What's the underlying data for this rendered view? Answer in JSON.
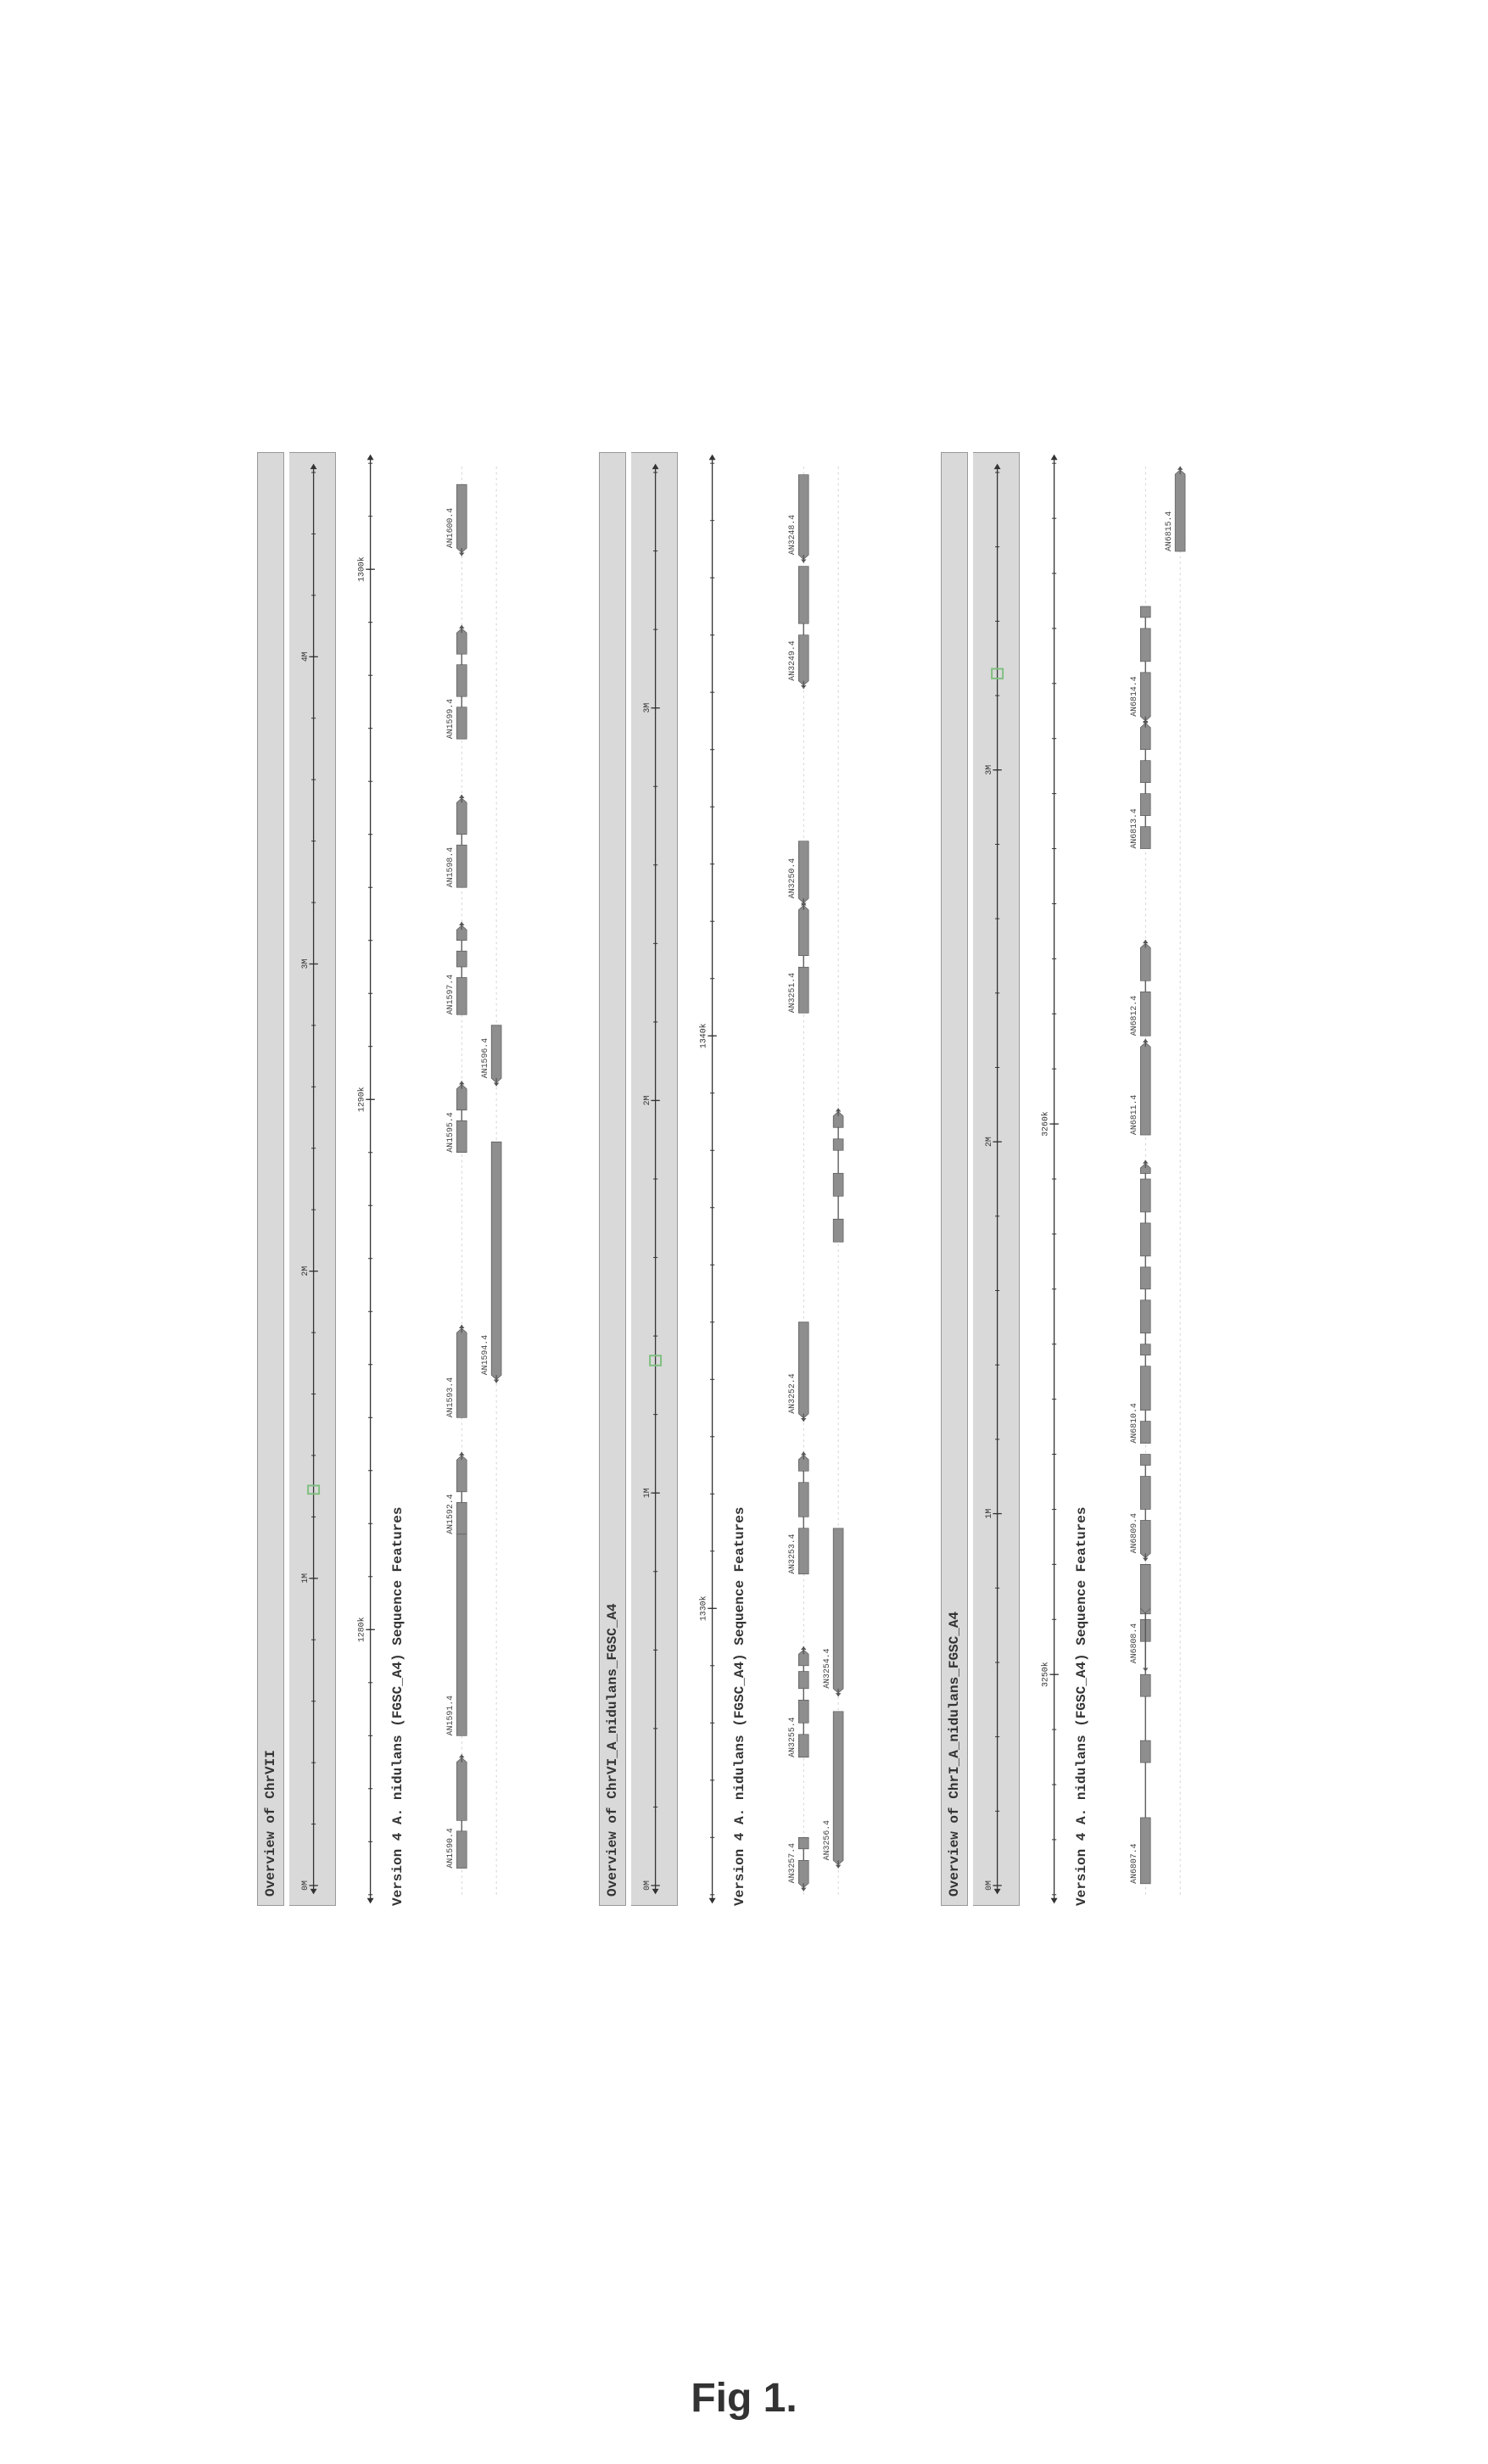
{
  "caption": "Fig 1.",
  "colors": {
    "overview_bg": "#d9d9d9",
    "axis": "#333333",
    "gene_fill": "#8e8e8e",
    "gene_stroke": "#555555",
    "highlight_box": "#7fbf7f",
    "dotted": "#bbbbbb"
  },
  "panels": [
    {
      "id": "chr7",
      "overview_title": "Overview of ChrVII",
      "overview_ticks": [
        "0M",
        "1M",
        "2M",
        "3M",
        "4M"
      ],
      "overview_span": [
        0,
        4600000
      ],
      "highlight_range": [
        1275000,
        1302000
      ],
      "detail_span": [
        1275000,
        1302000
      ],
      "detail_ticks": [
        {
          "pos": 1280000,
          "label": "1280k"
        },
        {
          "pos": 1290000,
          "label": "1290k"
        },
        {
          "pos": 1300000,
          "label": "1300k"
        }
      ],
      "track_title": "Version 4 A. nidulans (FGSC_A4) Sequence Features",
      "genes": [
        {
          "name": "AN1590.4",
          "start": 1275500,
          "end": 1277500,
          "strand": 1,
          "row": 0,
          "segments": [
            [
              1275500,
              1276200
            ],
            [
              1276400,
              1277500
            ]
          ]
        },
        {
          "name": "AN1591.4",
          "start": 1278000,
          "end": 1281800,
          "strand": 1,
          "row": 0,
          "segments": [
            [
              1278000,
              1281800
            ]
          ]
        },
        {
          "name": "AN1592.4",
          "start": 1281800,
          "end": 1283200,
          "strand": 1,
          "row": 0,
          "segments": [
            [
              1281800,
              1282400
            ],
            [
              1282600,
              1283200
            ]
          ]
        },
        {
          "name": "AN1593.4",
          "start": 1284000,
          "end": 1285600,
          "strand": 1,
          "row": 0,
          "segments": [
            [
              1284000,
              1285600
            ]
          ]
        },
        {
          "name": "AN1594.4",
          "start": 1284800,
          "end": 1289200,
          "strand": -1,
          "row": 1,
          "segments": [
            [
              1284800,
              1289200
            ]
          ]
        },
        {
          "name": "AN1595.4",
          "start": 1289000,
          "end": 1290200,
          "strand": 1,
          "row": 0,
          "segments": [
            [
              1289000,
              1289600
            ],
            [
              1289800,
              1290200
            ]
          ]
        },
        {
          "name": "AN1596.4",
          "start": 1290400,
          "end": 1291400,
          "strand": -1,
          "row": 1,
          "segments": [
            [
              1290400,
              1291400
            ]
          ]
        },
        {
          "name": "AN1597.4",
          "start": 1291600,
          "end": 1293200,
          "strand": 1,
          "row": 0,
          "segments": [
            [
              1291600,
              1292300
            ],
            [
              1292500,
              1292800
            ],
            [
              1293000,
              1293200
            ]
          ]
        },
        {
          "name": "AN1598.4",
          "start": 1294000,
          "end": 1295600,
          "strand": 1,
          "row": 0,
          "segments": [
            [
              1294000,
              1294800
            ],
            [
              1295000,
              1295600
            ]
          ]
        },
        {
          "name": "AN1599.4",
          "start": 1296800,
          "end": 1298800,
          "strand": 1,
          "row": 0,
          "segments": [
            [
              1296800,
              1297400
            ],
            [
              1297600,
              1298200
            ],
            [
              1298400,
              1298800
            ]
          ]
        },
        {
          "name": "AN1600.4",
          "start": 1300400,
          "end": 1301600,
          "strand": -1,
          "row": 0,
          "segments": [
            [
              1300400,
              1301600
            ]
          ]
        }
      ]
    },
    {
      "id": "chr6",
      "overview_title": "Overview of ChrVI_A_nidulans_FGSC_A4",
      "overview_ticks": [
        "0M",
        "1M",
        "2M",
        "3M"
      ],
      "overview_span": [
        0,
        3600000
      ],
      "highlight_range": [
        1325000,
        1350000
      ],
      "detail_span": [
        1325000,
        1350000
      ],
      "detail_ticks": [
        {
          "pos": 1330000,
          "label": "1330k"
        },
        {
          "pos": 1340000,
          "label": "1340k"
        }
      ],
      "track_title": "Version 4 A. nidulans (FGSC_A4) Sequence Features",
      "genes": [
        {
          "name": "AN3257.4",
          "start": 1325200,
          "end": 1326000,
          "strand": -1,
          "row": 0,
          "segments": [
            [
              1325200,
              1325600
            ],
            [
              1325800,
              1326000
            ]
          ]
        },
        {
          "name": "AN3256.4",
          "start": 1325600,
          "end": 1328200,
          "strand": -1,
          "row": 1,
          "segments": [
            [
              1325600,
              1328200
            ]
          ]
        },
        {
          "name": "AN3255.4",
          "start": 1327400,
          "end": 1329200,
          "strand": 1,
          "row": 0,
          "segments": [
            [
              1327400,
              1327800
            ],
            [
              1328000,
              1328400
            ],
            [
              1328600,
              1328900
            ],
            [
              1329000,
              1329200
            ]
          ]
        },
        {
          "name": "AN3254.4",
          "start": 1328600,
          "end": 1331400,
          "strand": -1,
          "row": 1,
          "segments": [
            [
              1328600,
              1331400
            ]
          ]
        },
        {
          "name": "AN3253.4",
          "start": 1330600,
          "end": 1332600,
          "strand": 1,
          "row": 0,
          "segments": [
            [
              1330600,
              1331400
            ],
            [
              1331600,
              1332200
            ],
            [
              1332400,
              1332600
            ]
          ]
        },
        {
          "name": "AN3252.4",
          "start": 1333400,
          "end": 1335000,
          "strand": -1,
          "row": 0,
          "segments": [
            [
              1333400,
              1335000
            ]
          ]
        },
        {
          "name": "",
          "start": 1336400,
          "end": 1338600,
          "strand": 1,
          "row": 1,
          "segments": [
            [
              1336400,
              1336800
            ],
            [
              1337200,
              1337600
            ],
            [
              1338000,
              1338200
            ],
            [
              1338400,
              1338600
            ]
          ]
        },
        {
          "name": "AN3251.4",
          "start": 1340400,
          "end": 1342200,
          "strand": 1,
          "row": 0,
          "segments": [
            [
              1340400,
              1341200
            ],
            [
              1341400,
              1342200
            ]
          ]
        },
        {
          "name": "AN3250.4",
          "start": 1342400,
          "end": 1343400,
          "strand": -1,
          "row": 0,
          "segments": [
            [
              1342400,
              1343400
            ]
          ]
        },
        {
          "name": "AN3249.4",
          "start": 1346200,
          "end": 1348200,
          "strand": -1,
          "row": 0,
          "segments": [
            [
              1346200,
              1347000
            ],
            [
              1347200,
              1348200
            ]
          ]
        },
        {
          "name": "AN3248.4",
          "start": 1348400,
          "end": 1349800,
          "strand": -1,
          "row": 0,
          "segments": [
            [
              1348400,
              1349800
            ]
          ]
        }
      ]
    },
    {
      "id": "chr1",
      "overview_title": "Overview of ChrI_A_nidulans_FGSC_A4",
      "overview_ticks": [
        "0M",
        "1M",
        "2M",
        "3M"
      ],
      "overview_span": [
        0,
        3800000
      ],
      "highlight_range": [
        3246000,
        3272000
      ],
      "detail_span": [
        3246000,
        3272000
      ],
      "detail_ticks": [
        {
          "pos": 3250000,
          "label": "3250k"
        },
        {
          "pos": 3260000,
          "label": "3260k"
        }
      ],
      "track_title": "Version 4 A. nidulans (FGSC_A4) Sequence Features",
      "genes": [
        {
          "name": "AN6807.4",
          "start": 3246200,
          "end": 3251200,
          "strand": 1,
          "row": 0,
          "segments": [
            [
              3246200,
              3247400
            ],
            [
              3248400,
              3248800
            ],
            [
              3249600,
              3250000
            ],
            [
              3250600,
              3251000
            ],
            [
              3251100,
              3251200
            ]
          ]
        },
        {
          "name": "AN6808.4",
          "start": 3250200,
          "end": 3252000,
          "strand": -1,
          "row": 0,
          "segments": [
            [
              3251200,
              3252000
            ]
          ],
          "label_offset": 0
        },
        {
          "name": "AN6809.4",
          "start": 3252200,
          "end": 3254000,
          "strand": -1,
          "row": 0,
          "segments": [
            [
              3252200,
              3252800
            ],
            [
              3253000,
              3253600
            ],
            [
              3253800,
              3254000
            ]
          ]
        },
        {
          "name": "AN6810.4",
          "start": 3254200,
          "end": 3259200,
          "strand": 1,
          "row": 0,
          "segments": [
            [
              3254200,
              3254600
            ],
            [
              3254800,
              3255600
            ],
            [
              3255800,
              3256000
            ],
            [
              3256200,
              3256800
            ],
            [
              3257000,
              3257400
            ],
            [
              3257600,
              3258200
            ],
            [
              3258400,
              3259000
            ],
            [
              3259100,
              3259200
            ]
          ]
        },
        {
          "name": "AN6811.4",
          "start": 3259800,
          "end": 3261400,
          "strand": 1,
          "row": 0,
          "segments": [
            [
              3259800,
              3261400
            ]
          ]
        },
        {
          "name": "AN6812.4",
          "start": 3261600,
          "end": 3263200,
          "strand": 1,
          "row": 0,
          "segments": [
            [
              3261600,
              3262400
            ],
            [
              3262600,
              3263200
            ]
          ]
        },
        {
          "name": "AN6813.4",
          "start": 3265000,
          "end": 3267200,
          "strand": 1,
          "row": 0,
          "segments": [
            [
              3265000,
              3265400
            ],
            [
              3265600,
              3266000
            ],
            [
              3266200,
              3266600
            ],
            [
              3266800,
              3267200
            ]
          ]
        },
        {
          "name": "AN6814.4",
          "start": 3267400,
          "end": 3269400,
          "strand": -1,
          "row": 0,
          "segments": [
            [
              3267400,
              3268200
            ],
            [
              3268400,
              3269000
            ],
            [
              3269200,
              3269400
            ]
          ]
        },
        {
          "name": "AN6815.4",
          "start": 3270400,
          "end": 3271800,
          "strand": 1,
          "row": 1,
          "segments": [
            [
              3270400,
              3271800
            ]
          ]
        }
      ]
    }
  ]
}
